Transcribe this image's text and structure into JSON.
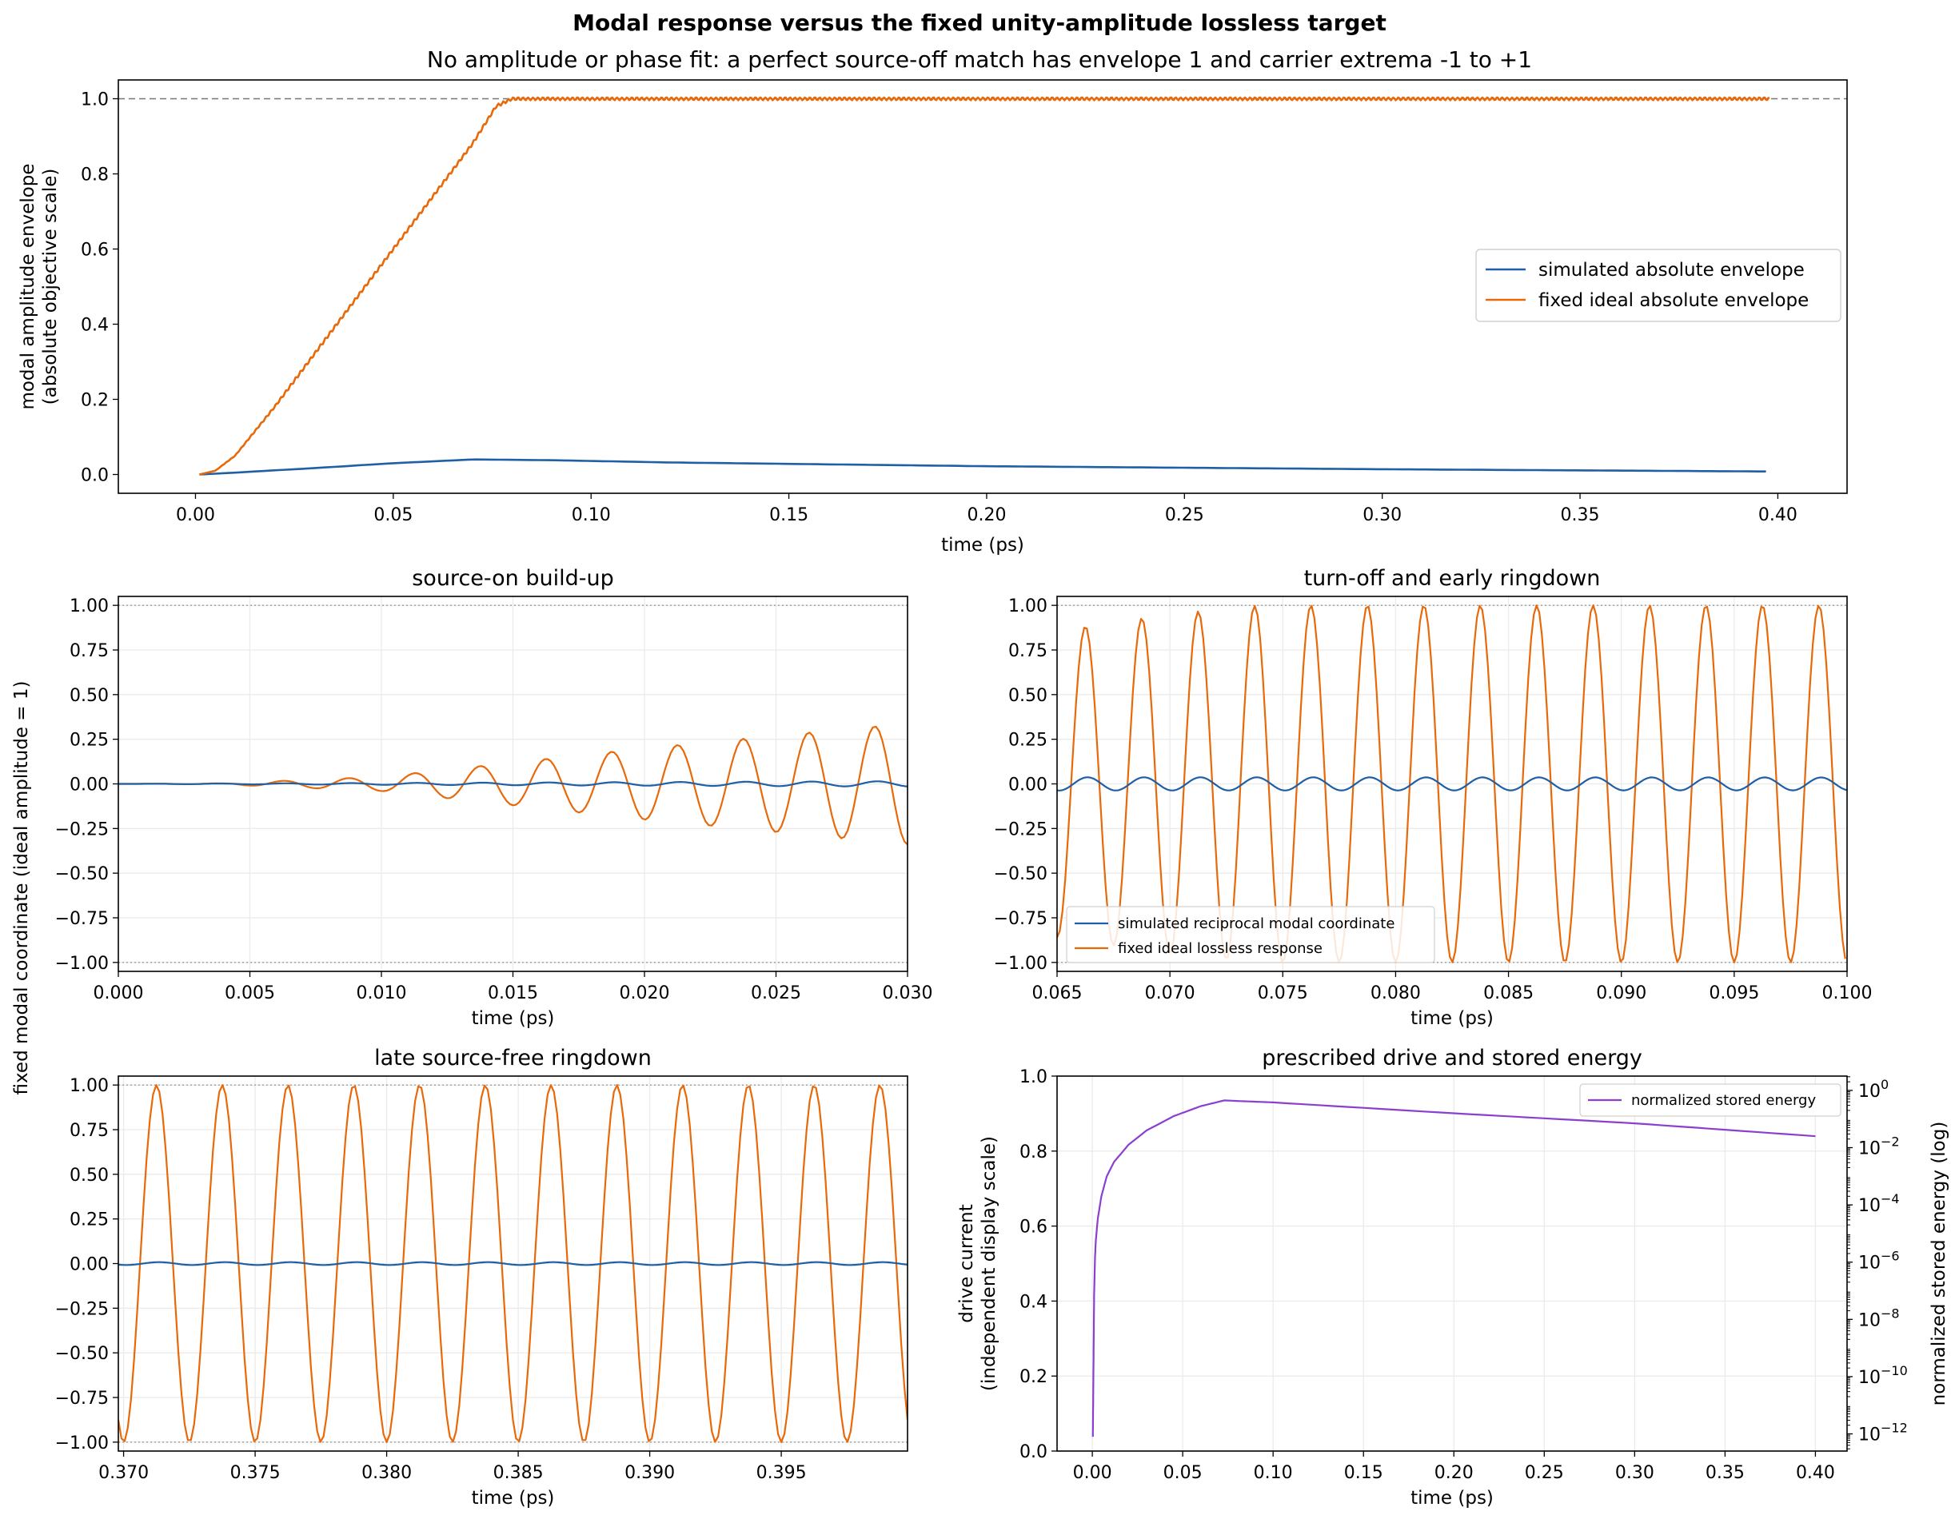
{
  "figure": {
    "title": "Modal response versus the fixed unity-amplitude lossless target",
    "subtitle": "No amplitude or phase fit: a perfect source-off match has envelope 1 and carrier extrema -1 to +1"
  },
  "colors": {
    "simulated": "#1f5fa5",
    "ideal": "#e8690a",
    "energy": "#8a3fd1",
    "refline": "#777777",
    "grid": "#ebebeb"
  },
  "chart_data": [
    {
      "id": "envelope",
      "type": "line",
      "title": "",
      "xlabel": "time (ps)",
      "ylabel": [
        "modal amplitude envelope",
        "(absolute objective scale)"
      ],
      "xlim": [
        -0.0195,
        0.4175
      ],
      "ylim": [
        -0.05,
        1.05
      ],
      "xticks": [
        "0.00",
        "0.05",
        "0.10",
        "0.15",
        "0.20",
        "0.25",
        "0.30",
        "0.35",
        "0.40"
      ],
      "yticks": [
        "0.0",
        "0.2",
        "0.4",
        "0.6",
        "0.8",
        "1.0"
      ],
      "grid": false,
      "reference_line": {
        "y": 1.0,
        "style": "dashed"
      },
      "legend_position": "center-right",
      "series": [
        {
          "name": "simulated absolute envelope",
          "color_key": "simulated",
          "x": [
            0.001,
            0.01,
            0.03,
            0.05,
            0.07,
            0.09,
            0.12,
            0.2,
            0.3,
            0.398
          ],
          "y": [
            0.0,
            0.005,
            0.017,
            0.03,
            0.04,
            0.038,
            0.032,
            0.022,
            0.014,
            0.008
          ]
        },
        {
          "name": "fixed ideal absolute envelope",
          "color_key": "ideal",
          "x": [
            0.001,
            0.005,
            0.01,
            0.02,
            0.03,
            0.04,
            0.05,
            0.06,
            0.07,
            0.076,
            0.08,
            0.2,
            0.3,
            0.398
          ],
          "y": [
            0.0,
            0.01,
            0.05,
            0.18,
            0.32,
            0.46,
            0.6,
            0.74,
            0.88,
            0.98,
            1.0,
            1.0,
            1.0,
            1.0
          ]
        }
      ]
    },
    {
      "id": "buildup",
      "type": "line",
      "title": "source-on build-up",
      "xlabel": "time (ps)",
      "ylabel": "fixed modal coordinate (ideal amplitude = 1)",
      "xlim": [
        0.0,
        0.03
      ],
      "ylim": [
        -1.05,
        1.05
      ],
      "xticks": [
        "0.000",
        "0.005",
        "0.010",
        "0.015",
        "0.020",
        "0.025",
        "0.030"
      ],
      "yticks": [
        "−1.00",
        "−0.75",
        "−0.50",
        "−0.25",
        "0.00",
        "0.25",
        "0.50",
        "0.75",
        "1.00"
      ],
      "grid": true,
      "reference_lines": [
        1.0,
        -1.0
      ],
      "series": [
        {
          "name": "simulated reciprocal modal coordinate",
          "color_key": "simulated",
          "carrier_period_ps": 0.0025,
          "phase_ps": 0.0001,
          "amplitude": [
            [
              0.0,
              0.0
            ],
            [
              0.03,
              0.015
            ]
          ]
        },
        {
          "name": "fixed ideal lossless response",
          "color_key": "ideal",
          "carrier_period_ps": 0.0025,
          "phase_ps": 0.0,
          "amplitude": [
            [
              0.0,
              0.0
            ],
            [
              0.004,
              0.003
            ],
            [
              0.01,
              0.04
            ],
            [
              0.02,
              0.2
            ],
            [
              0.03,
              0.34
            ]
          ]
        }
      ]
    },
    {
      "id": "turnoff",
      "type": "line",
      "title": "turn-off and early ringdown",
      "xlabel": "time (ps)",
      "ylabel": "",
      "xlim": [
        0.065,
        0.1
      ],
      "ylim": [
        -1.05,
        1.05
      ],
      "xticks": [
        "0.065",
        "0.070",
        "0.075",
        "0.080",
        "0.085",
        "0.090",
        "0.095",
        "0.100"
      ],
      "yticks": [
        "−1.00",
        "−0.75",
        "−0.50",
        "−0.25",
        "0.00",
        "0.25",
        "0.50",
        "0.75",
        "1.00"
      ],
      "grid": true,
      "reference_lines": [
        1.0,
        -1.0
      ],
      "legend_position": "lower-left",
      "series": [
        {
          "name": "simulated reciprocal modal coordinate",
          "color_key": "simulated",
          "carrier_period_ps": 0.0025,
          "phase_ps": 0.0001,
          "amplitude": [
            [
              0.065,
              0.037
            ],
            [
              0.1,
              0.036
            ]
          ]
        },
        {
          "name": "fixed ideal lossless response",
          "color_key": "ideal",
          "carrier_period_ps": 0.0025,
          "phase_ps": 0.0,
          "amplitude": [
            [
              0.065,
              0.86
            ],
            [
              0.07,
              0.95
            ],
            [
              0.074,
              1.0
            ],
            [
              0.1,
              1.0
            ]
          ]
        }
      ]
    },
    {
      "id": "late",
      "type": "line",
      "title": "late source-free ringdown",
      "xlabel": "time (ps)",
      "ylabel": "",
      "xlim": [
        0.3698,
        0.3998
      ],
      "ylim": [
        -1.05,
        1.05
      ],
      "xticks": [
        "0.370",
        "0.375",
        "0.380",
        "0.385",
        "0.390",
        "0.395"
      ],
      "yticks": [
        "−1.00",
        "−0.75",
        "−0.50",
        "−0.25",
        "0.00",
        "0.25",
        "0.50",
        "0.75",
        "1.00"
      ],
      "grid": true,
      "reference_lines": [
        1.0,
        -1.0
      ],
      "series": [
        {
          "name": "simulated reciprocal modal coordinate",
          "color_key": "simulated",
          "carrier_period_ps": 0.0025,
          "phase_ps": 0.0001,
          "amplitude": [
            [
              0.37,
              0.008
            ],
            [
              0.4,
              0.008
            ]
          ]
        },
        {
          "name": "fixed ideal lossless response",
          "color_key": "ideal",
          "carrier_period_ps": 0.0025,
          "phase_ps": 0.0,
          "amplitude": [
            [
              0.37,
              1.0
            ],
            [
              0.4,
              1.0
            ]
          ]
        }
      ]
    },
    {
      "id": "drive",
      "type": "line",
      "title": "prescribed drive and stored energy",
      "xlabel": "time (ps)",
      "ylabel": [
        "drive current",
        "(independent display scale)"
      ],
      "ylabel_right": "normalized stored energy (log)",
      "xlim": [
        -0.0195,
        0.4175
      ],
      "ylim": [
        0.0,
        1.0
      ],
      "ylim_right_log10": [
        -12.6,
        0.5
      ],
      "xticks": [
        "0.00",
        "0.05",
        "0.10",
        "0.15",
        "0.20",
        "0.25",
        "0.30",
        "0.35",
        "0.40"
      ],
      "yticks": [
        "0.0",
        "0.2",
        "0.4",
        "0.6",
        "0.8",
        "1.0"
      ],
      "yticks_right_exponents": [
        "0",
        "−2",
        "−4",
        "−6",
        "−8",
        "−10",
        "−12"
      ],
      "grid": true,
      "legend_position": "top-right",
      "series": [
        {
          "name": "normalized stored energy",
          "color_key": "energy",
          "axis": "right",
          "x": [
            0.0003,
            0.0006,
            0.001,
            0.0015,
            0.002,
            0.003,
            0.005,
            0.008,
            0.012,
            0.02,
            0.03,
            0.045,
            0.06,
            0.073,
            0.1,
            0.2,
            0.3,
            0.4
          ],
          "log10_y": [
            -12.1,
            -10.0,
            -7.2,
            -5.8,
            -5.2,
            -4.5,
            -3.7,
            -3.0,
            -2.5,
            -1.9,
            -1.4,
            -0.9,
            -0.55,
            -0.35,
            -0.42,
            -0.8,
            -1.15,
            -1.6
          ]
        }
      ]
    }
  ]
}
